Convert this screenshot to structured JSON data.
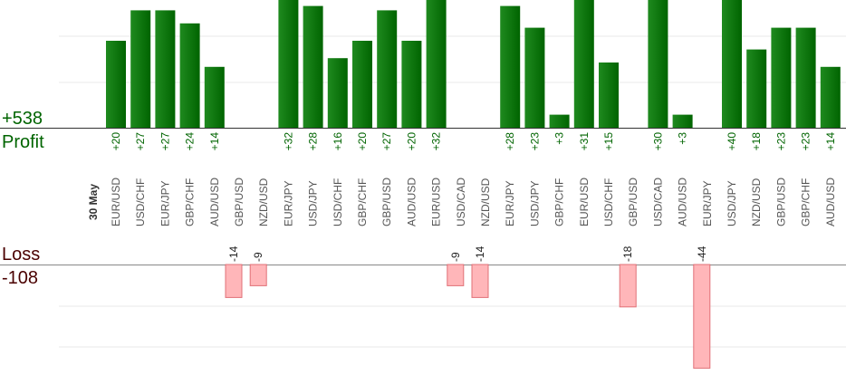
{
  "chart_data": {
    "type": "bar",
    "date_label": "30 May",
    "profit_label": "Profit",
    "profit_total": "+538",
    "loss_label": "Loss",
    "loss_total": "-108",
    "profit_ylim": [
      0,
      35
    ],
    "loss_ylim": [
      0,
      27
    ],
    "grid": true,
    "colors": {
      "profit_bar": "#006400",
      "profit_text": "#006400",
      "loss_bar": "#ffb6b9",
      "loss_bar_stroke": "#e07077",
      "loss_text": "#4a0000",
      "tick_label": "#555555"
    },
    "bars": [
      {
        "pair": "EUR/USD",
        "value": 20
      },
      {
        "pair": "USD/CHF",
        "value": 27
      },
      {
        "pair": "EUR/JPY",
        "value": 27
      },
      {
        "pair": "GBP/CHF",
        "value": 24
      },
      {
        "pair": "AUD/USD",
        "value": 14
      },
      {
        "pair": "GBP/USD",
        "value": -14
      },
      {
        "pair": "NZD/USD",
        "value": -9
      },
      {
        "pair": "EUR/JPY",
        "value": 32
      },
      {
        "pair": "USD/JPY",
        "value": 28
      },
      {
        "pair": "USD/CHF",
        "value": 16
      },
      {
        "pair": "GBP/CHF",
        "value": 20
      },
      {
        "pair": "GBP/USD",
        "value": 27
      },
      {
        "pair": "AUD/USD",
        "value": 20
      },
      {
        "pair": "EUR/USD",
        "value": 32
      },
      {
        "pair": "USD/CAD",
        "value": -9
      },
      {
        "pair": "NZD/USD",
        "value": -14
      },
      {
        "pair": "EUR/JPY",
        "value": 28
      },
      {
        "pair": "USD/JPY",
        "value": 23
      },
      {
        "pair": "GBP/CHF",
        "value": 3
      },
      {
        "pair": "EUR/USD",
        "value": 31
      },
      {
        "pair": "USD/CHF",
        "value": 15
      },
      {
        "pair": "GBP/USD",
        "value": -18
      },
      {
        "pair": "USD/CAD",
        "value": 30
      },
      {
        "pair": "AUD/USD",
        "value": 3
      },
      {
        "pair": "EUR/JPY",
        "value": -44
      },
      {
        "pair": "USD/JPY",
        "value": 40
      },
      {
        "pair": "NZD/USD",
        "value": 18
      },
      {
        "pair": "GBP/USD",
        "value": 23
      },
      {
        "pair": "GBP/CHF",
        "value": 23
      },
      {
        "pair": "AUD/USD",
        "value": 14
      }
    ]
  }
}
